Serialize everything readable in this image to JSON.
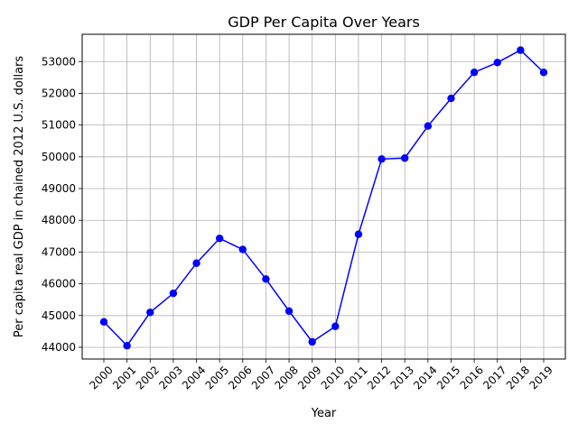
{
  "chart_data": {
    "type": "line",
    "title": "GDP Per Capita Over Years",
    "xlabel": "Year",
    "ylabel": "Per capita real GDP in chained 2012 U.S. dollars",
    "categories": [
      "2000",
      "2001",
      "2002",
      "2003",
      "2004",
      "2005",
      "2006",
      "2007",
      "2008",
      "2009",
      "2010",
      "2011",
      "2012",
      "2013",
      "2014",
      "2015",
      "2016",
      "2017",
      "2018",
      "2019"
    ],
    "series": [
      {
        "values": [
          44800,
          44050,
          45100,
          45700,
          46650,
          47430,
          47080,
          46150,
          45140,
          44170,
          44660,
          47560,
          49930,
          49960,
          50970,
          51840,
          52660,
          52970,
          53360,
          52660
        ],
        "color": "#0000ff",
        "marker": "circle"
      }
    ],
    "yticks": [
      44000,
      45000,
      46000,
      47000,
      48000,
      49000,
      50000,
      51000,
      52000,
      53000
    ],
    "ylim": [
      43630,
      53860
    ],
    "grid": true,
    "legend": "none"
  }
}
